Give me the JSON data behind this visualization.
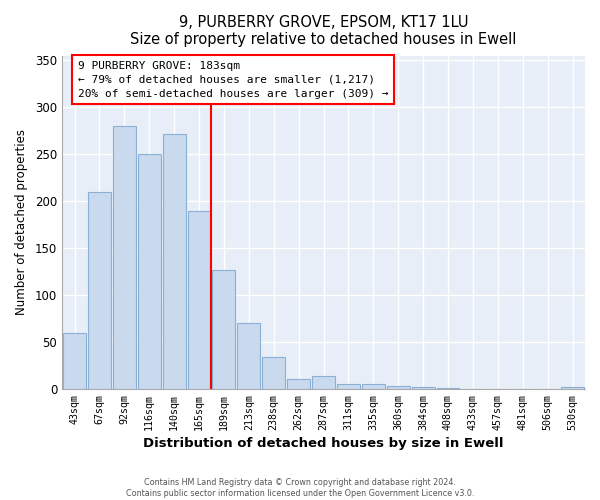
{
  "title": "9, PURBERRY GROVE, EPSOM, KT17 1LU",
  "subtitle": "Size of property relative to detached houses in Ewell",
  "xlabel": "Distribution of detached houses by size in Ewell",
  "ylabel": "Number of detached properties",
  "bar_labels": [
    "43sqm",
    "67sqm",
    "92sqm",
    "116sqm",
    "140sqm",
    "165sqm",
    "189sqm",
    "213sqm",
    "238sqm",
    "262sqm",
    "287sqm",
    "311sqm",
    "335sqm",
    "360sqm",
    "384sqm",
    "408sqm",
    "433sqm",
    "457sqm",
    "481sqm",
    "506sqm",
    "530sqm"
  ],
  "bar_values": [
    60,
    210,
    280,
    250,
    272,
    190,
    127,
    70,
    34,
    11,
    14,
    5,
    5,
    3,
    2,
    1,
    0,
    0,
    0,
    0,
    2
  ],
  "bar_color": "#c9d9ee",
  "bar_edge_color": "#8ab0d4",
  "vline_x_index": 5.5,
  "vline_color": "red",
  "annotation_title": "9 PURBERRY GROVE: 183sqm",
  "annotation_line1": "← 79% of detached houses are smaller (1,217)",
  "annotation_line2": "20% of semi-detached houses are larger (309) →",
  "annotation_box_color": "white",
  "annotation_box_edge": "red",
  "plot_bg_color": "#e8eef7",
  "grid_color": "white",
  "ylim": [
    0,
    355
  ],
  "yticks": [
    0,
    50,
    100,
    150,
    200,
    250,
    300,
    350
  ],
  "footer1": "Contains HM Land Registry data © Crown copyright and database right 2024.",
  "footer2": "Contains public sector information licensed under the Open Government Licence v3.0."
}
